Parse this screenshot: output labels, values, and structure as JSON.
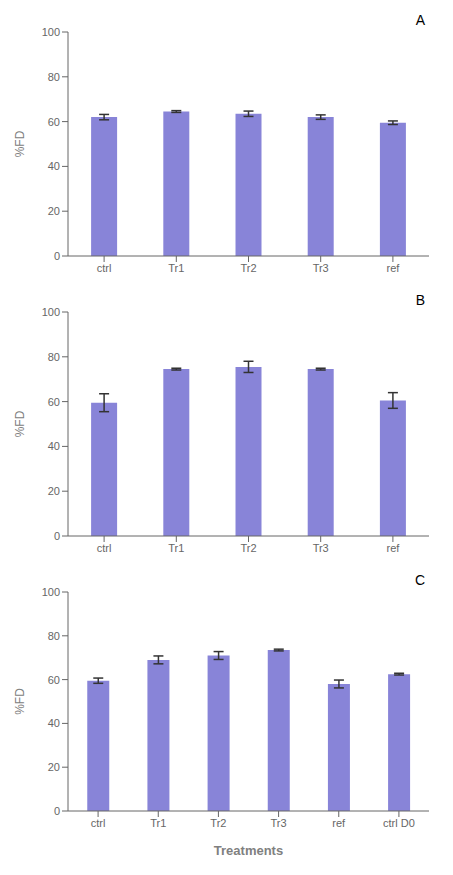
{
  "chart_data": [
    {
      "type": "bar",
      "annotation": "A",
      "categories": [
        "ctrl",
        "Tr1",
        "Tr2",
        "Tr3",
        "ref"
      ],
      "values": [
        62.0,
        64.5,
        63.5,
        62.0,
        59.5
      ],
      "errors": [
        1.2,
        0.4,
        1.2,
        1.0,
        0.8
      ],
      "ylim": [
        0,
        100
      ],
      "yticks": [
        0,
        20,
        40,
        60,
        80,
        100
      ],
      "ylabel": "%FD",
      "color": "#8884d8",
      "grid": false
    },
    {
      "type": "bar",
      "annotation": "B",
      "categories": [
        "ctrl",
        "Tr1",
        "Tr2",
        "Tr3",
        "ref"
      ],
      "values": [
        59.5,
        74.5,
        75.5,
        74.5,
        60.5
      ],
      "errors": [
        4.0,
        0.4,
        2.5,
        0.4,
        3.5
      ],
      "ylim": [
        0,
        100
      ],
      "yticks": [
        0,
        20,
        40,
        60,
        80,
        100
      ],
      "ylabel": "%FD",
      "color": "#8884d8",
      "grid": false
    },
    {
      "type": "bar",
      "annotation": "C",
      "categories": [
        "ctrl",
        "Tr1",
        "Tr2",
        "Tr3",
        "ref",
        "ctrl D0"
      ],
      "values": [
        59.5,
        69.0,
        71.0,
        73.5,
        58.0,
        62.5
      ],
      "errors": [
        1.2,
        1.8,
        1.8,
        0.4,
        1.8,
        0.4
      ],
      "ylim": [
        0,
        100
      ],
      "yticks": [
        0,
        20,
        40,
        60,
        80,
        100
      ],
      "ylabel": "%FD",
      "xlabel": "Treatments",
      "color": "#8884d8",
      "grid": false
    }
  ]
}
